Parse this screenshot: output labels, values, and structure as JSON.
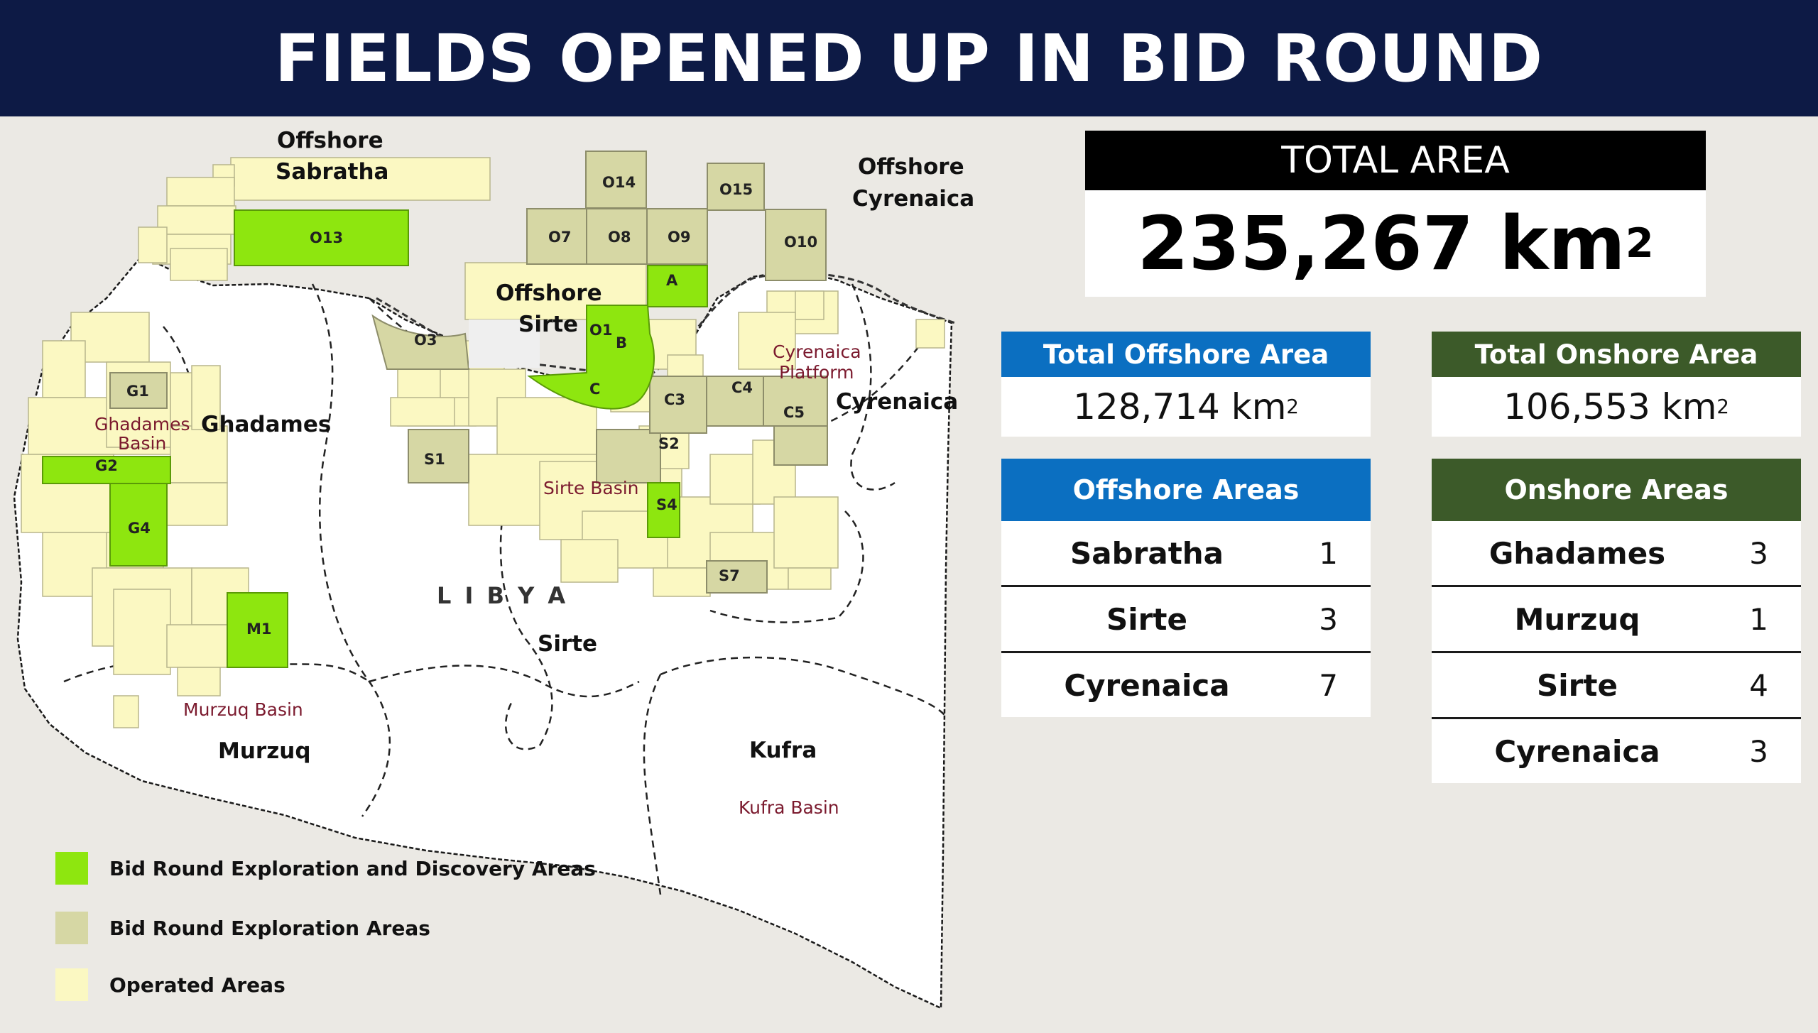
{
  "header": {
    "title": "FIELDS OPENED UP IN BID ROUND"
  },
  "colors": {
    "header_bg": "#0d1a45",
    "discovery": "#8ee60f",
    "exploration": "#d6d7a4",
    "operated": "#fbf8c2",
    "offshore_blue": "#0b6fc1",
    "onshore_green": "#3c5a29",
    "basin_text": "#7b1a2e"
  },
  "map": {
    "country_label": "L I B Y A",
    "regions": {
      "offshore_sabratha": [
        "Offshore",
        "Sabratha"
      ],
      "offshore_cyrenaica": [
        "Offshore",
        "Cyrenaica"
      ],
      "offshore_sirte": [
        "Offshore",
        "Sirte"
      ],
      "ghadames": "Ghadames",
      "cyrenaica": "Cyrenaica",
      "sirte": "Sirte",
      "murzuq": "Murzuq",
      "kufra": "Kufra"
    },
    "basins": {
      "ghadames_basin": [
        "Ghadames",
        "Basin"
      ],
      "cyrenaica_platform": [
        "Cyrenaica",
        "Platform"
      ],
      "sirte_basin": "Sirte Basin",
      "murzuq_basin": "Murzuq Basin",
      "kufra_basin": "Kufra Basin"
    },
    "blocks": {
      "o13": "O13",
      "o14": "O14",
      "o15": "O15",
      "o7": "O7",
      "o8": "O8",
      "o9": "O9",
      "o10": "O10",
      "o3": "O3",
      "o1": "O1",
      "a": "A",
      "b": "B",
      "c": "C",
      "g1": "G1",
      "g2": "G2",
      "g4": "G4",
      "m1": "M1",
      "s1": "S1",
      "s2": "S2",
      "s4": "S4",
      "s7": "S7",
      "c3": "C3",
      "c4": "C4",
      "c5": "C5"
    }
  },
  "legend": {
    "items": [
      {
        "label": "Bid Round Exploration and Discovery Areas",
        "color": "#8ee60f"
      },
      {
        "label": "Bid Round Exploration Areas",
        "color": "#d6d7a4"
      },
      {
        "label": "Operated Areas",
        "color": "#fbf8c2"
      }
    ]
  },
  "total_area": {
    "title": "TOTAL AREA",
    "value": "235,267 km",
    "unit_sup": "2"
  },
  "offshore_total": {
    "title": "Total Offshore Area",
    "value": "128,714 km",
    "unit_sup": "2"
  },
  "onshore_total": {
    "title": "Total Onshore Area",
    "value": "106,553 km",
    "unit_sup": "2"
  },
  "offshore_areas": {
    "title": "Offshore Areas",
    "rows": [
      {
        "name": "Sabratha",
        "count": "1"
      },
      {
        "name": "Sirte",
        "count": "3"
      },
      {
        "name": "Cyrenaica",
        "count": "7"
      }
    ]
  },
  "onshore_areas": {
    "title": "Onshore Areas",
    "rows": [
      {
        "name": "Ghadames",
        "count": "3"
      },
      {
        "name": "Murzuq",
        "count": "1"
      },
      {
        "name": "Sirte",
        "count": "4"
      },
      {
        "name": "Cyrenaica",
        "count": "3"
      }
    ]
  }
}
